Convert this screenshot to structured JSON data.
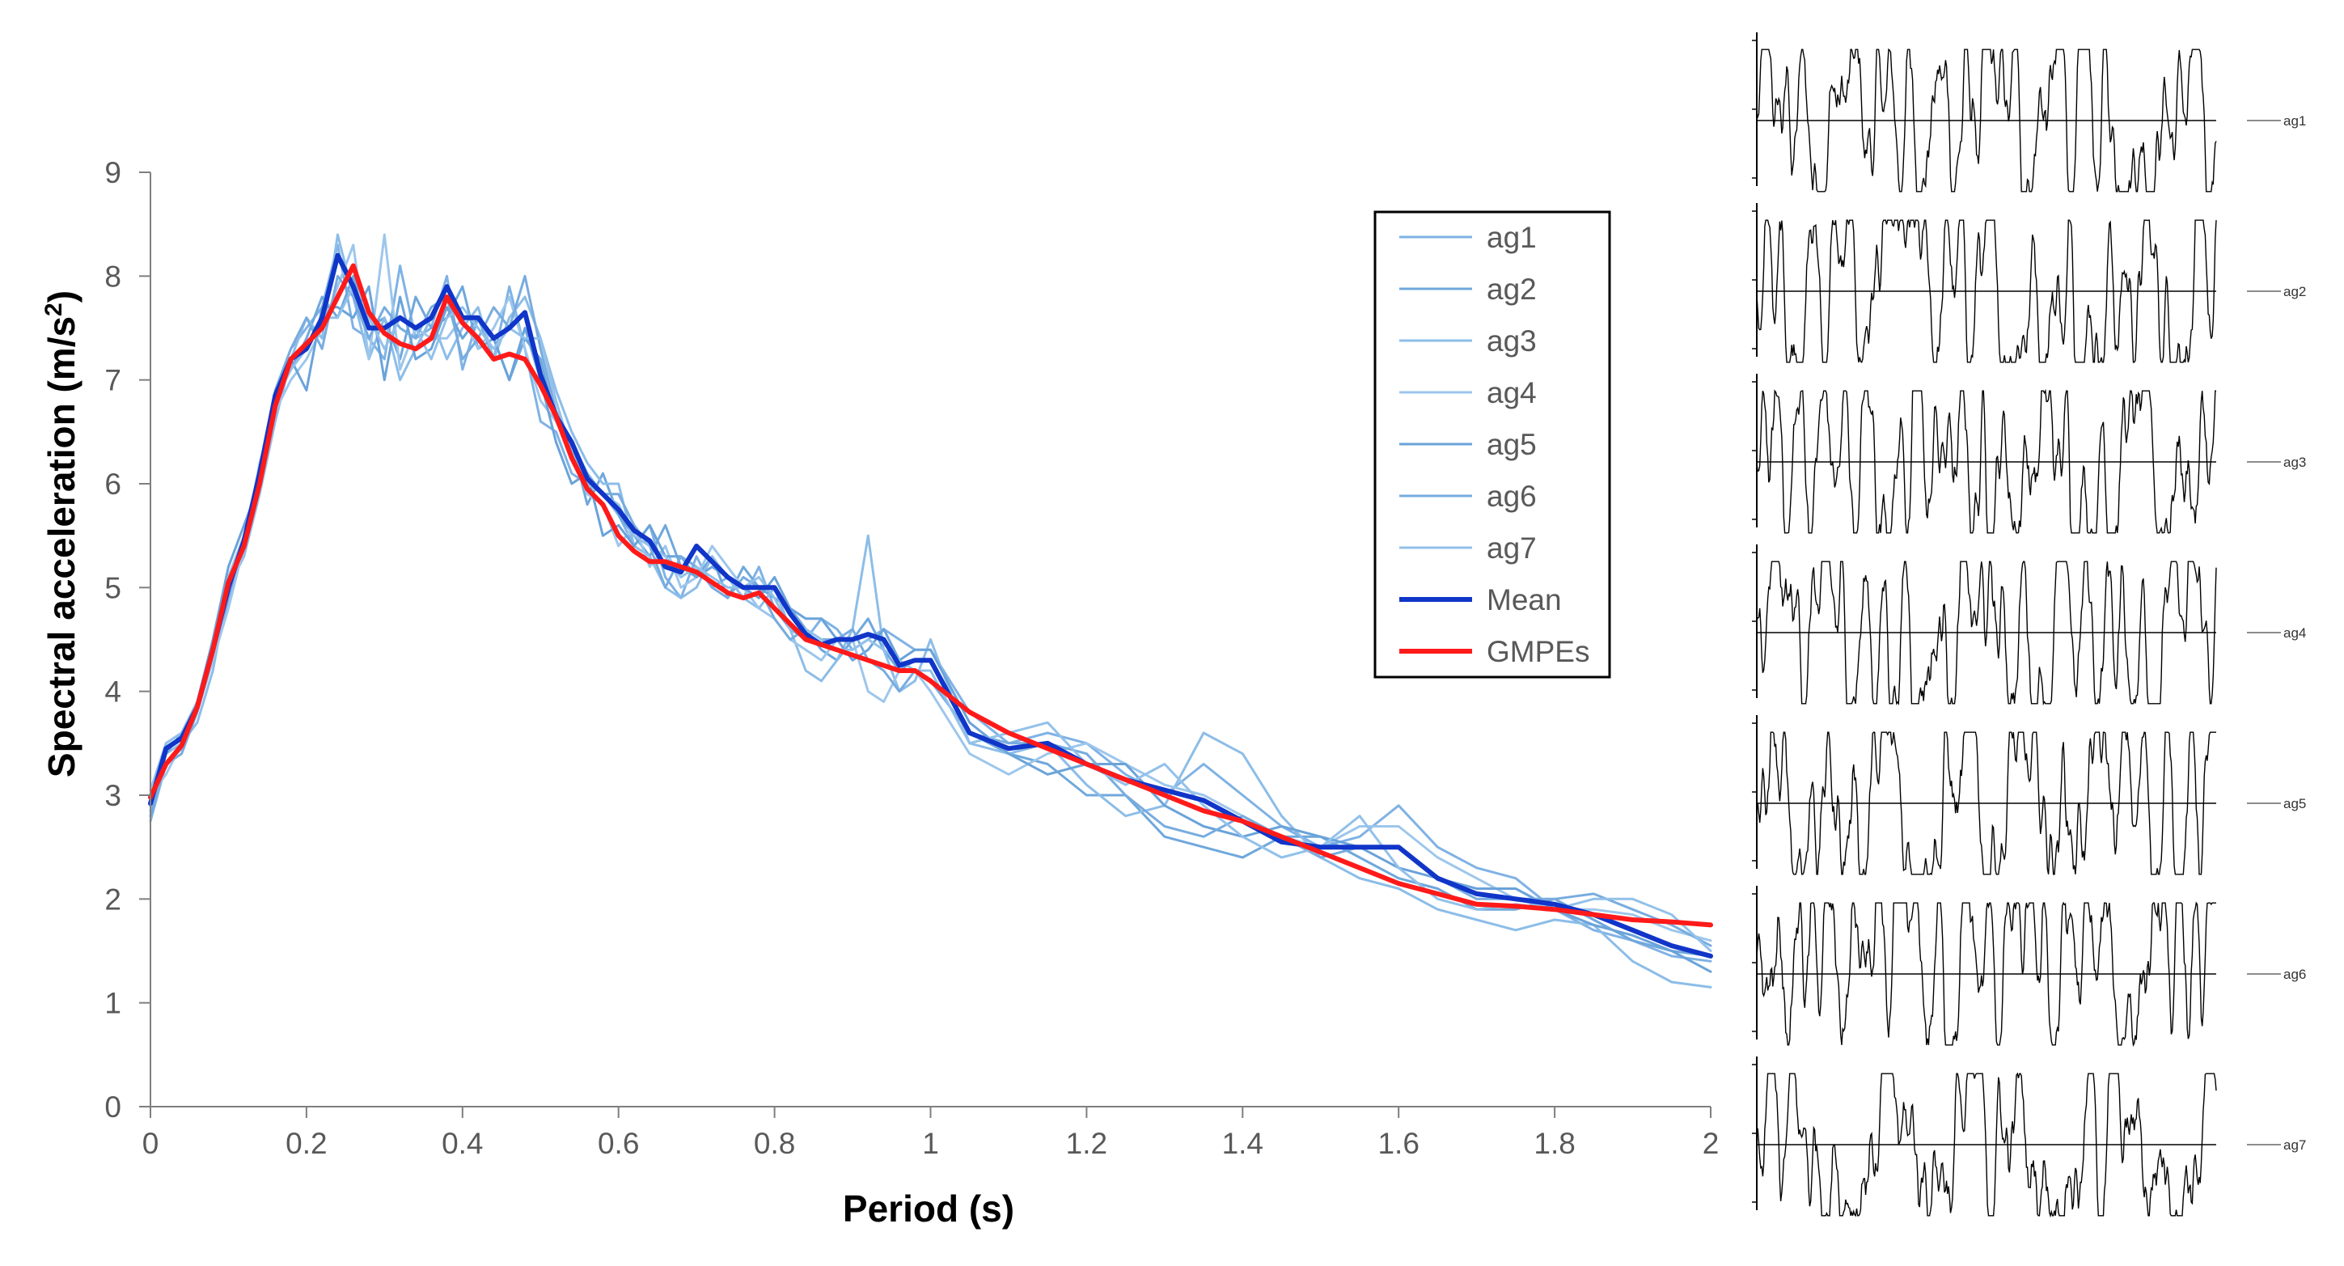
{
  "chart_data": {
    "type": "line",
    "title": "",
    "xlabel": "Period (s)",
    "ylabel_main": "Spectral acceleration (m/s",
    "ylabel_sup": "2",
    "ylabel_end": ")",
    "xlim": [
      0,
      2
    ],
    "ylim": [
      0,
      9
    ],
    "x_ticks": [
      "0",
      "0.2",
      "0.4",
      "0.6",
      "0.8",
      "1",
      "1.2",
      "1.4",
      "1.6",
      "1.8",
      "2"
    ],
    "y_ticks": [
      "0",
      "1",
      "2",
      "3",
      "4",
      "5",
      "6",
      "7",
      "8",
      "9"
    ],
    "legend_position": "top-right",
    "x": [
      0,
      0.02,
      0.04,
      0.06,
      0.08,
      0.1,
      0.12,
      0.14,
      0.16,
      0.18,
      0.2,
      0.22,
      0.24,
      0.26,
      0.28,
      0.3,
      0.32,
      0.34,
      0.36,
      0.38,
      0.4,
      0.42,
      0.44,
      0.46,
      0.48,
      0.5,
      0.52,
      0.54,
      0.56,
      0.58,
      0.6,
      0.62,
      0.64,
      0.66,
      0.68,
      0.7,
      0.72,
      0.74,
      0.76,
      0.78,
      0.8,
      0.82,
      0.84,
      0.86,
      0.88,
      0.9,
      0.92,
      0.94,
      0.96,
      0.98,
      1.0,
      1.05,
      1.1,
      1.15,
      1.2,
      1.25,
      1.3,
      1.35,
      1.4,
      1.45,
      1.5,
      1.55,
      1.6,
      1.65,
      1.7,
      1.75,
      1.8,
      1.85,
      1.9,
      1.95,
      2.0
    ],
    "series": [
      {
        "name": "ag1",
        "color": "#7fb2e5",
        "width": 3,
        "values": [
          2.75,
          3.3,
          3.45,
          3.8,
          4.4,
          5.1,
          5.5,
          6.1,
          6.9,
          7.3,
          7.5,
          7.7,
          8.3,
          7.5,
          7.4,
          7.2,
          8.1,
          7.4,
          7.5,
          8.0,
          7.1,
          7.6,
          7.2,
          7.9,
          7.3,
          6.6,
          6.5,
          6.1,
          6.0,
          5.9,
          5.7,
          5.4,
          5.6,
          5.1,
          4.9,
          5.3,
          5.0,
          5.1,
          4.9,
          5.2,
          4.8,
          4.6,
          4.5,
          4.7,
          4.6,
          4.4,
          4.5,
          4.6,
          4.5,
          4.4,
          4.4,
          3.8,
          3.5,
          3.6,
          3.5,
          3.2,
          3.0,
          3.3,
          3.0,
          2.7,
          2.5,
          2.6,
          2.9,
          2.5,
          2.3,
          2.2,
          1.9,
          1.7,
          1.6,
          1.45,
          1.4
        ]
      },
      {
        "name": "ag2",
        "color": "#6fa8dc",
        "width": 3,
        "values": [
          3.0,
          3.5,
          3.6,
          3.9,
          4.3,
          4.9,
          5.4,
          6.0,
          6.8,
          7.1,
          7.4,
          7.8,
          7.6,
          8.0,
          7.5,
          7.6,
          7.2,
          7.8,
          7.5,
          7.6,
          7.9,
          7.3,
          7.4,
          7.0,
          7.4,
          7.2,
          6.6,
          6.4,
          5.8,
          6.1,
          5.7,
          5.5,
          5.3,
          5.6,
          5.2,
          5.1,
          5.3,
          4.9,
          5.2,
          5.0,
          4.9,
          4.8,
          4.6,
          4.4,
          4.3,
          4.5,
          4.7,
          4.4,
          4.2,
          4.3,
          4.3,
          3.6,
          3.4,
          3.3,
          3.0,
          3.0,
          2.6,
          2.5,
          2.4,
          2.6,
          2.6,
          2.4,
          2.2,
          2.1,
          1.9,
          1.9,
          2.0,
          1.8,
          1.6,
          1.5,
          1.45
        ]
      },
      {
        "name": "ag3",
        "color": "#8cbde8",
        "width": 3,
        "values": [
          2.9,
          3.4,
          3.5,
          3.7,
          4.2,
          5.0,
          5.3,
          5.9,
          6.6,
          7.2,
          7.6,
          7.4,
          8.4,
          7.8,
          7.2,
          7.6,
          7.0,
          7.3,
          7.6,
          7.2,
          7.5,
          7.7,
          7.2,
          7.6,
          7.8,
          7.4,
          6.9,
          6.5,
          6.2,
          6.0,
          6.0,
          5.4,
          5.3,
          5.0,
          4.9,
          5.0,
          5.3,
          5.1,
          4.9,
          4.8,
          5.0,
          4.6,
          4.2,
          4.1,
          4.3,
          4.6,
          5.5,
          4.4,
          4.0,
          4.1,
          4.5,
          3.5,
          3.4,
          3.5,
          3.1,
          2.8,
          2.9,
          3.6,
          3.4,
          2.8,
          2.4,
          2.2,
          2.1,
          1.9,
          1.8,
          1.7,
          1.8,
          1.75,
          1.4,
          1.2,
          1.15
        ]
      },
      {
        "name": "ag4",
        "color": "#9dc6ec",
        "width": 3,
        "values": [
          3.0,
          3.2,
          3.5,
          3.8,
          4.3,
          4.8,
          5.4,
          6.2,
          6.7,
          7.0,
          7.2,
          7.5,
          7.9,
          8.3,
          7.2,
          8.4,
          7.1,
          7.5,
          7.4,
          7.4,
          7.6,
          7.3,
          7.5,
          7.8,
          7.3,
          6.8,
          6.6,
          6.3,
          5.9,
          5.8,
          5.4,
          5.6,
          5.2,
          5.4,
          5.0,
          5.1,
          5.4,
          5.2,
          5.0,
          4.8,
          4.7,
          4.5,
          4.4,
          4.3,
          4.5,
          4.5,
          4.0,
          3.9,
          4.2,
          4.2,
          4.0,
          3.4,
          3.2,
          3.4,
          3.5,
          3.3,
          3.1,
          3.0,
          2.8,
          2.6,
          2.5,
          2.7,
          2.7,
          2.4,
          2.2,
          2.0,
          1.9,
          1.9,
          1.85,
          1.7,
          1.6
        ]
      },
      {
        "name": "ag5",
        "color": "#6aa3da",
        "width": 3,
        "values": [
          2.8,
          3.4,
          3.6,
          3.9,
          4.5,
          5.2,
          5.6,
          6.0,
          6.8,
          7.2,
          6.9,
          7.7,
          7.7,
          7.6,
          7.9,
          7.0,
          7.8,
          7.2,
          7.3,
          7.7,
          7.4,
          7.6,
          7.4,
          7.0,
          7.5,
          7.0,
          6.4,
          6.0,
          6.1,
          5.5,
          5.6,
          5.4,
          5.6,
          5.3,
          5.3,
          5.1,
          5.2,
          5.1,
          5.0,
          4.9,
          5.1,
          4.8,
          4.7,
          4.7,
          4.5,
          4.3,
          4.4,
          4.6,
          4.3,
          4.4,
          4.4,
          3.7,
          3.4,
          3.2,
          3.3,
          3.3,
          2.9,
          2.7,
          2.6,
          2.7,
          2.6,
          2.5,
          2.3,
          2.2,
          2.1,
          2.1,
          1.9,
          1.75,
          1.65,
          1.5,
          1.3
        ]
      },
      {
        "name": "ag6",
        "color": "#78acdf",
        "width": 3,
        "values": [
          2.85,
          3.3,
          3.4,
          3.8,
          4.4,
          5.0,
          5.5,
          6.1,
          6.9,
          7.3,
          7.6,
          7.3,
          8.0,
          7.8,
          7.4,
          7.7,
          7.5,
          7.4,
          7.7,
          7.8,
          7.2,
          7.4,
          7.7,
          7.5,
          8.0,
          7.3,
          6.7,
          6.4,
          6.1,
          5.9,
          5.9,
          5.6,
          5.4,
          5.0,
          5.3,
          5.2,
          5.0,
          4.9,
          5.1,
          5.0,
          4.7,
          4.5,
          4.6,
          4.5,
          4.5,
          4.6,
          4.3,
          4.2,
          4.0,
          4.2,
          4.1,
          3.6,
          3.5,
          3.5,
          3.4,
          3.0,
          2.7,
          2.6,
          2.8,
          2.6,
          2.4,
          2.5,
          2.5,
          2.2,
          2.0,
          2.0,
          2.0,
          2.05,
          1.9,
          1.75,
          1.55
        ]
      },
      {
        "name": "ag7",
        "color": "#92c1ea",
        "width": 3,
        "values": [
          3.05,
          3.5,
          3.6,
          3.9,
          4.4,
          5.1,
          5.5,
          6.0,
          6.8,
          7.1,
          7.3,
          7.6,
          7.6,
          7.9,
          7.6,
          7.3,
          7.6,
          7.5,
          7.2,
          7.6,
          7.7,
          7.5,
          7.3,
          7.5,
          7.4,
          7.4,
          6.8,
          6.3,
          6.0,
          5.9,
          5.8,
          5.5,
          5.4,
          5.3,
          5.1,
          5.2,
          5.1,
          5.0,
          5.0,
          5.1,
          4.9,
          4.6,
          4.6,
          4.5,
          4.4,
          4.4,
          4.5,
          4.4,
          4.3,
          4.2,
          4.2,
          3.5,
          3.6,
          3.7,
          3.3,
          3.1,
          3.3,
          2.9,
          2.6,
          2.4,
          2.5,
          2.8,
          2.3,
          2.0,
          1.9,
          1.95,
          1.9,
          2.0,
          2.0,
          1.85,
          1.5
        ]
      },
      {
        "name": "Mean",
        "color": "#1035c8",
        "width": 6,
        "values": [
          2.92,
          3.45,
          3.55,
          3.85,
          4.4,
          5.0,
          5.45,
          6.1,
          6.85,
          7.2,
          7.3,
          7.6,
          8.2,
          7.9,
          7.5,
          7.5,
          7.6,
          7.5,
          7.6,
          7.9,
          7.6,
          7.6,
          7.4,
          7.5,
          7.65,
          7.05,
          6.65,
          6.4,
          6.05,
          5.9,
          5.75,
          5.55,
          5.45,
          5.2,
          5.15,
          5.4,
          5.25,
          5.1,
          5.0,
          5.0,
          5.0,
          4.75,
          4.55,
          4.45,
          4.5,
          4.5,
          4.55,
          4.5,
          4.25,
          4.3,
          4.3,
          3.6,
          3.45,
          3.5,
          3.3,
          3.15,
          3.05,
          2.95,
          2.75,
          2.55,
          2.5,
          2.5,
          2.5,
          2.2,
          2.05,
          2.0,
          1.95,
          1.85,
          1.7,
          1.55,
          1.45
        ]
      },
      {
        "name": "GMPEs",
        "color": "#ff1a1a",
        "width": 6,
        "values": [
          2.98,
          3.3,
          3.48,
          3.85,
          4.4,
          5.05,
          5.4,
          6.0,
          6.75,
          7.2,
          7.35,
          7.5,
          7.8,
          8.1,
          7.65,
          7.45,
          7.35,
          7.3,
          7.4,
          7.8,
          7.55,
          7.4,
          7.2,
          7.25,
          7.2,
          6.95,
          6.65,
          6.25,
          5.95,
          5.8,
          5.5,
          5.35,
          5.25,
          5.25,
          5.2,
          5.15,
          5.05,
          4.95,
          4.9,
          4.95,
          4.8,
          4.65,
          4.5,
          4.45,
          4.4,
          4.35,
          4.3,
          4.25,
          4.2,
          4.2,
          4.1,
          3.8,
          3.6,
          3.45,
          3.3,
          3.15,
          3.0,
          2.85,
          2.75,
          2.6,
          2.45,
          2.3,
          2.15,
          2.05,
          1.95,
          1.93,
          1.9,
          1.85,
          1.8,
          1.78,
          1.75
        ]
      }
    ]
  },
  "legend": {
    "items": [
      {
        "label": "ag1",
        "color": "#7fb2e5",
        "width": 3
      },
      {
        "label": "ag2",
        "color": "#6fa8dc",
        "width": 3
      },
      {
        "label": "ag3",
        "color": "#8cbde8",
        "width": 3
      },
      {
        "label": "ag4",
        "color": "#9dc6ec",
        "width": 3
      },
      {
        "label": "ag5",
        "color": "#6aa3da",
        "width": 3
      },
      {
        "label": "ag6",
        "color": "#78acdf",
        "width": 3
      },
      {
        "label": "ag7",
        "color": "#92c1ea",
        "width": 3
      },
      {
        "label": "Mean",
        "color": "#1035c8",
        "width": 6
      },
      {
        "label": "GMPEs",
        "color": "#ff1a1a",
        "width": 6
      }
    ]
  },
  "time_histories": [
    {
      "label": "ag1"
    },
    {
      "label": "ag2"
    },
    {
      "label": "ag3"
    },
    {
      "label": "ag4"
    },
    {
      "label": "ag5"
    },
    {
      "label": "ag6"
    },
    {
      "label": "ag7"
    }
  ]
}
